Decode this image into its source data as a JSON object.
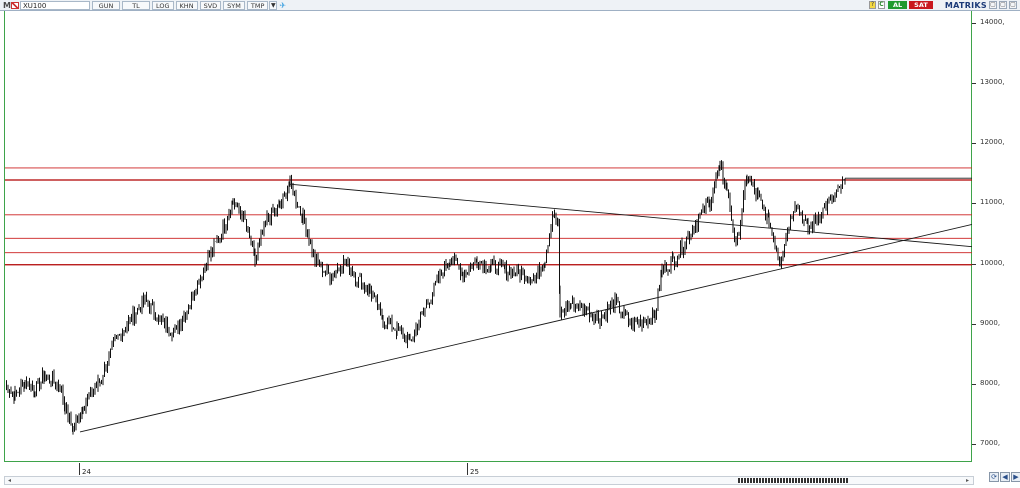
{
  "toolbar": {
    "logo": "M",
    "symbol": "XU100",
    "period_button": "GUN",
    "currency_button": "TL",
    "buttons": [
      "LOG",
      "KHN",
      "SVD",
      "SYM",
      "TMP"
    ],
    "buy_label": "AL",
    "sell_label": "SAT",
    "brand": "MATRIKS",
    "help_mini": "?",
    "c_mini": "C",
    "win_min": "▢",
    "win_restore": "▢",
    "win_close": "▢"
  },
  "chart_data": {
    "type": "bar",
    "symbol": "XU100",
    "y_ticks": [
      {
        "value": 14000,
        "label": "14000,"
      },
      {
        "value": 13000,
        "label": "13000,"
      },
      {
        "value": 12000,
        "label": "12000,"
      },
      {
        "value": 11000,
        "label": "11000,"
      },
      {
        "value": 10000,
        "label": "10000,"
      },
      {
        "value": 9000,
        "label": "9000,"
      },
      {
        "value": 8000,
        "label": "8000,"
      },
      {
        "value": 7000,
        "label": "7000,"
      }
    ],
    "x_ticks": [
      {
        "label": "24"
      },
      {
        "label": "25"
      }
    ],
    "horizontal_levels": [
      11590,
      11390,
      10810,
      10420,
      10180,
      9980
    ],
    "price_path": [
      [
        0,
        8000
      ],
      [
        10,
        7800
      ],
      [
        20,
        8050
      ],
      [
        30,
        7900
      ],
      [
        40,
        8150
      ],
      [
        55,
        7950
      ],
      [
        60,
        7600
      ],
      [
        68,
        7250
      ],
      [
        78,
        7650
      ],
      [
        95,
        8050
      ],
      [
        110,
        8700
      ],
      [
        125,
        9050
      ],
      [
        140,
        9400
      ],
      [
        155,
        9050
      ],
      [
        170,
        8850
      ],
      [
        185,
        9350
      ],
      [
        200,
        10000
      ],
      [
        215,
        10450
      ],
      [
        228,
        11050
      ],
      [
        240,
        10700
      ],
      [
        250,
        10050
      ],
      [
        262,
        10750
      ],
      [
        275,
        10950
      ],
      [
        285,
        11350
      ],
      [
        298,
        10750
      ],
      [
        304,
        10450
      ],
      [
        310,
        10050
      ],
      [
        325,
        9800
      ],
      [
        340,
        10050
      ],
      [
        352,
        9750
      ],
      [
        365,
        9550
      ],
      [
        378,
        9050
      ],
      [
        392,
        8900
      ],
      [
        405,
        8700
      ],
      [
        420,
        9250
      ],
      [
        432,
        9700
      ],
      [
        445,
        10100
      ],
      [
        458,
        9850
      ],
      [
        472,
        10050
      ],
      [
        486,
        9950
      ],
      [
        500,
        9900
      ],
      [
        515,
        9850
      ],
      [
        530,
        9750
      ],
      [
        540,
        10100
      ],
      [
        548,
        10850
      ],
      [
        553,
        10600
      ],
      [
        555,
        9150
      ],
      [
        566,
        9350
      ],
      [
        580,
        9250
      ],
      [
        595,
        9100
      ],
      [
        610,
        9350
      ],
      [
        625,
        9000
      ],
      [
        640,
        9050
      ],
      [
        650,
        9150
      ],
      [
        657,
        9900
      ],
      [
        668,
        10050
      ],
      [
        680,
        10350
      ],
      [
        692,
        10700
      ],
      [
        705,
        11050
      ],
      [
        715,
        11600
      ],
      [
        722,
        11250
      ],
      [
        731,
        10250
      ],
      [
        742,
        11450
      ],
      [
        753,
        11100
      ],
      [
        764,
        10700
      ],
      [
        775,
        10050
      ],
      [
        790,
        11050
      ],
      [
        803,
        10550
      ],
      [
        818,
        10900
      ],
      [
        830,
        11100
      ],
      [
        840,
        11380
      ]
    ],
    "trendlines": [
      {
        "from": [
          75,
          7200
        ],
        "to": [
          972,
          10650
        ]
      },
      {
        "from": [
          285,
          11320
        ],
        "to": [
          972,
          10280
        ]
      },
      {
        "from": [
          840,
          11420
        ],
        "to": [
          972,
          11420
        ]
      }
    ],
    "y_range": [
      6700,
      14200
    ],
    "grid": false
  },
  "colors": {
    "level_line": "#cc1f1f",
    "level_line_bold": "#b00000",
    "price": "#111111",
    "frame": "#3ea34a",
    "brand": "#1b3a78"
  }
}
